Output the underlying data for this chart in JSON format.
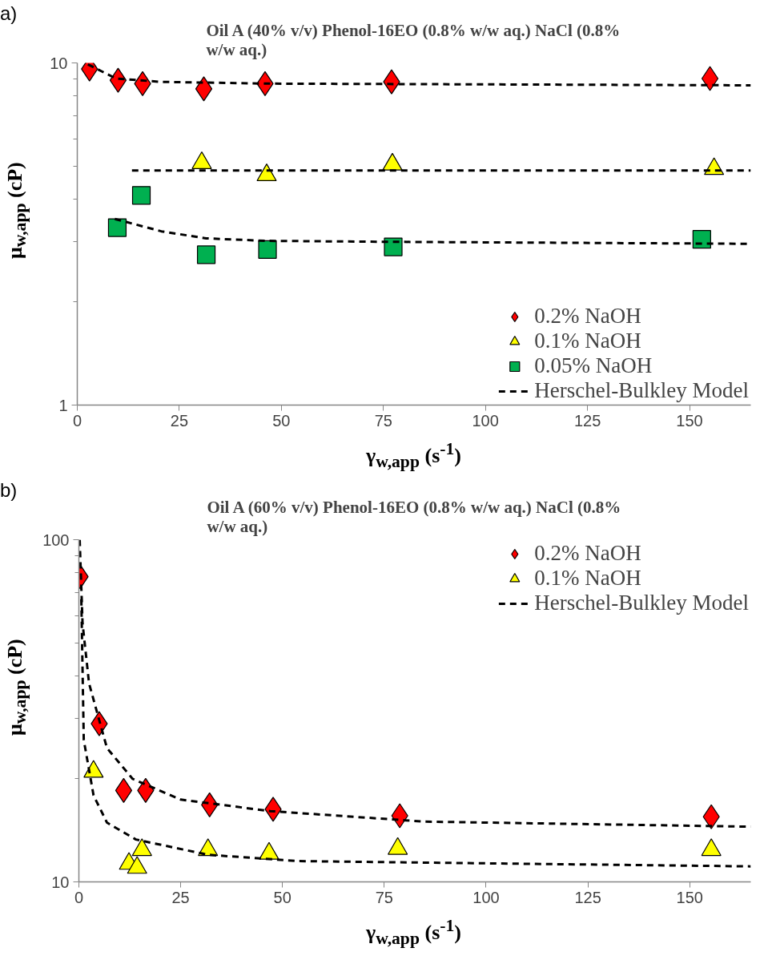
{
  "chart_data": [
    {
      "type": "scatter",
      "title": "Oil A (40% v/v) Phenol-16EO (0.8% w/w aq.) NaCl (0.8% w/w aq.)",
      "xlabel": "γ$_{w,app}$ (s$^{-1}$)",
      "ylabel": "μ$_{w,app}$ (cP)",
      "annotations": [
        "a)"
      ],
      "log": "y",
      "xlim": [
        0,
        165
      ],
      "xticks": [
        0,
        25,
        50,
        75,
        100,
        125,
        150
      ],
      "ylim": [
        1,
        10
      ],
      "yticks": [
        1,
        10
      ],
      "grid": false,
      "legend": "bottom right",
      "series": [
        {
          "name": "0.2% NaOH",
          "marker": "diamond",
          "color": "#ff0000",
          "x": [
            3,
            10,
            16,
            31,
            46,
            77,
            155
          ],
          "values": [
            9.6,
            8.9,
            8.7,
            8.4,
            8.7,
            8.8,
            9.0
          ]
        },
        {
          "name": "0.1% NaOH",
          "marker": "triangle",
          "color": "#ffff00",
          "x": [
            30.5,
            46.4,
            77.2,
            156
          ],
          "values": [
            5.1,
            4.7,
            5.05,
            4.9
          ]
        },
        {
          "name": "0.05% NaOH",
          "marker": "square",
          "color": "#00b050",
          "x": [
            9.8,
            15.7,
            31.6,
            46.6,
            77.4,
            153
          ],
          "values": [
            3.3,
            4.1,
            2.75,
            2.85,
            2.9,
            3.05
          ]
        },
        {
          "name": "Herschel-Bulkley Model",
          "type": "line",
          "line_style": "dashed",
          "color": "#000000",
          "x": [
            2.6,
            9.5,
            20.6,
            47,
            165
          ],
          "values": [
            9.9,
            9.0,
            8.8,
            8.7,
            8.6
          ]
        },
        {
          "type": "line",
          "line_style": "dashed",
          "color": "#000000",
          "x": [
            13.4,
            165
          ],
          "values": [
            4.85,
            4.85
          ]
        },
        {
          "type": "line",
          "line_style": "dashed",
          "color": "#000000",
          "x": [
            9.2,
            20.6,
            31.6,
            46,
            77,
            165
          ],
          "values": [
            3.5,
            3.22,
            3.07,
            3.02,
            3.0,
            2.96
          ]
        }
      ]
    },
    {
      "type": "scatter",
      "title": "Oil A (60% v/v) Phenol-16EO (0.8% w/w aq.) NaCl (0.8% w/w aq.)",
      "xlabel": "γ$_{w,app}$ (s$^{-1}$)",
      "ylabel": "μ$_{w,app}$ (cP)",
      "annotations": [
        "b)"
      ],
      "log": "y",
      "xlim": [
        0,
        165
      ],
      "xticks": [
        0,
        25,
        50,
        75,
        100,
        125,
        150
      ],
      "ylim": [
        10,
        100
      ],
      "yticks": [
        10,
        100
      ],
      "grid": false,
      "legend": "top right",
      "series": [
        {
          "name": "0.2% NaOH",
          "marker": "diamond",
          "color": "#ff0000",
          "x": [
            0.3,
            5,
            11,
            16.4,
            32.1,
            47.7,
            78.8,
            155.3
          ],
          "values": [
            78,
            29,
            18.5,
            18.5,
            16.8,
            16.3,
            15.6,
            15.5
          ]
        },
        {
          "name": "0.1% NaOH",
          "marker": "triangle",
          "color": "#ffff00",
          "x": [
            3.6,
            12.3,
            14.3,
            15.5,
            31.7,
            46.7,
            78.3,
            155.3
          ],
          "values": [
            21,
            11.3,
            11,
            12.4,
            12.4,
            12.1,
            12.5,
            12.4
          ]
        },
        {
          "name": "Herschel-Bulkley Model",
          "type": "line",
          "line_style": "dashed",
          "color": "#000000",
          "x": [
            0.2,
            0.9,
            2.5,
            6.9,
            13.2,
            25,
            47,
            85,
            165
          ],
          "values": [
            100,
            57,
            38,
            24.6,
            20,
            17.4,
            16.1,
            15,
            14.5
          ]
        },
        {
          "type": "line",
          "line_style": "dashed",
          "color": "#000000",
          "x": [
            0.6,
            1.2,
            3.6,
            6.9,
            14,
            31.7,
            54,
            108,
            165
          ],
          "values": [
            67,
            26,
            17.9,
            14.9,
            13.3,
            12,
            11.5,
            11.3,
            11.1
          ]
        }
      ]
    }
  ]
}
